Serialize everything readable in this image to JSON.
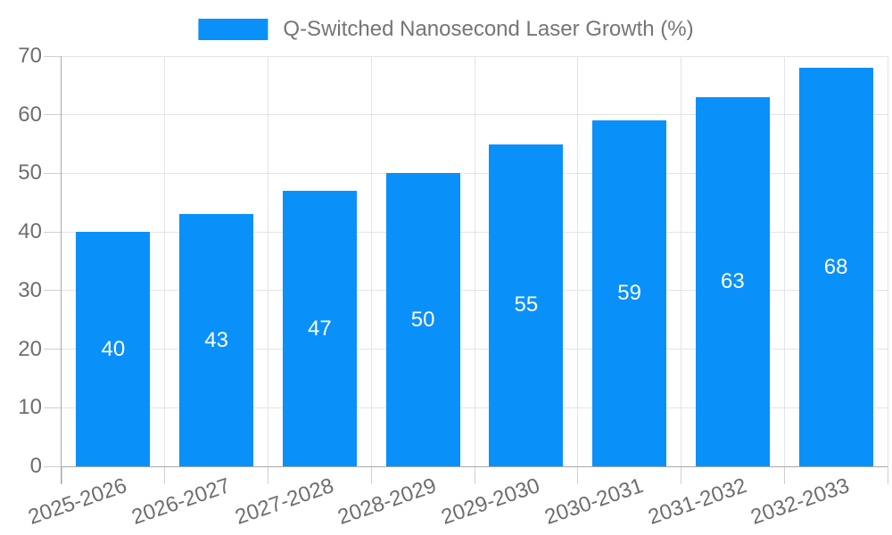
{
  "chart_data": {
    "type": "bar",
    "title": "Q-Switched Nanosecond Laser Growth (%)",
    "categories": [
      "2025-2026",
      "2026-2027",
      "2027-2028",
      "2028-2029",
      "2029-2030",
      "2030-2031",
      "2031-2032",
      "2032-2033"
    ],
    "values": [
      40,
      43,
      47,
      50,
      55,
      59,
      63,
      68
    ],
    "series_name": "Q-Switched Nanosecond Laser Growth (%)",
    "xlabel": "",
    "ylabel": "",
    "ylim": [
      0,
      70
    ],
    "yticks": [
      0,
      10,
      20,
      30,
      40,
      50,
      60,
      70
    ],
    "grid": "horizontal-and-vertical",
    "legend_position": "top-center",
    "x_tick_rotation_deg": -19,
    "bar_labels_inside": true,
    "colors": {
      "bar": "#0a90f9",
      "bar_label": "#ffffff",
      "grid": "#e4e4e4",
      "tick": "#cfcfcf",
      "axis": "#a9a9a9",
      "axis_text": "#6e6e6e",
      "legend_text": "#757575",
      "background": "#ffffff"
    }
  }
}
